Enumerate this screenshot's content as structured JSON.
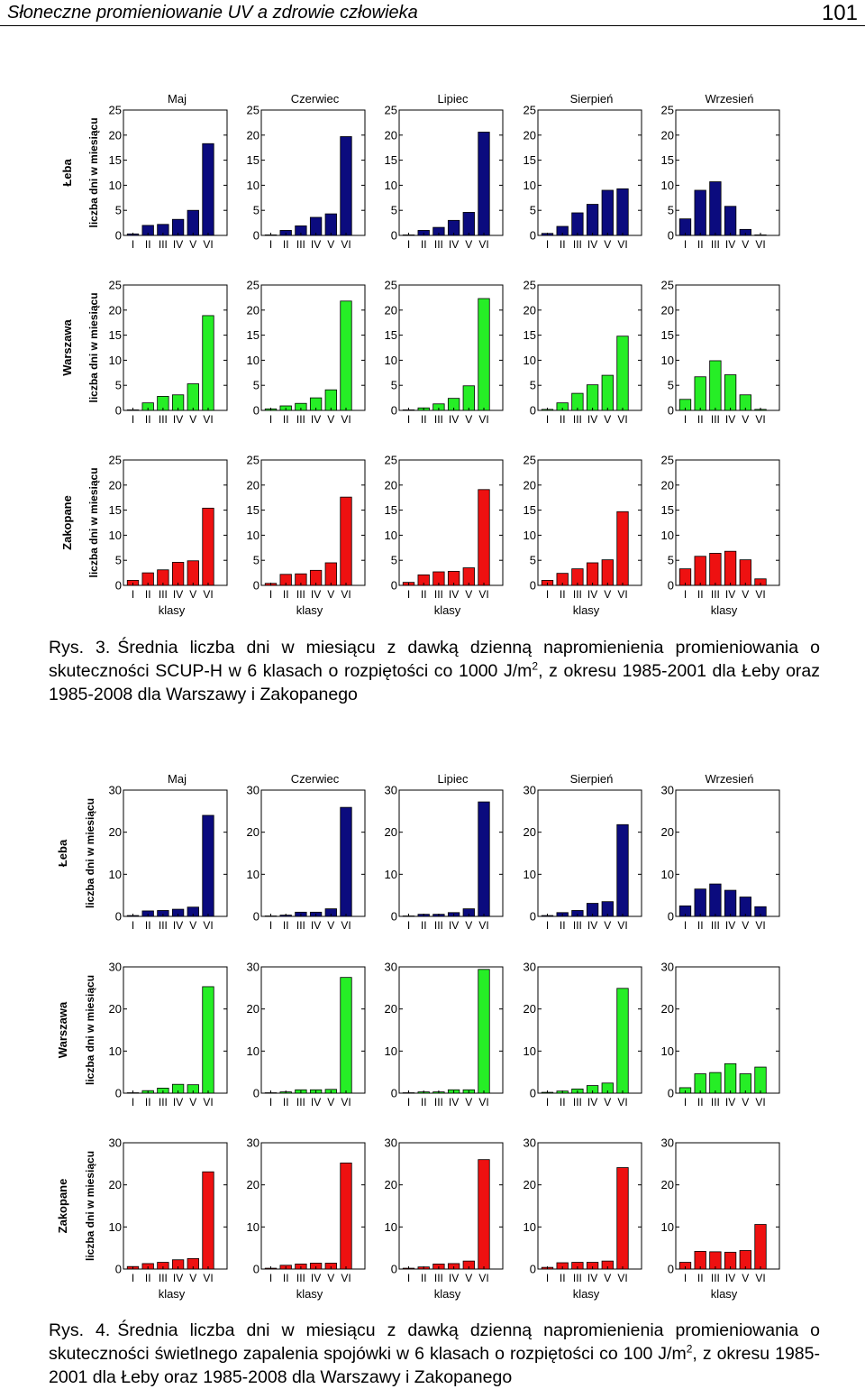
{
  "header": {
    "title": "Słoneczne promieniowanie UV a zdrowie człowieka",
    "page_number": "101"
  },
  "colors": {
    "Łeba": "#0b0b7e",
    "Warszawa": "#26ee26",
    "Zakopane": "#ee1111"
  },
  "chart_data": [
    {
      "type": "bar",
      "months": [
        "Maj",
        "Czerwiec",
        "Lipiec",
        "Sierpień",
        "Wrzesień"
      ],
      "cities": [
        "Łeba",
        "Warszawa",
        "Zakopane"
      ],
      "categories": [
        "I",
        "II",
        "III",
        "IV",
        "V",
        "VI"
      ],
      "xlabel": "klasy",
      "ylabel": "liczba dni w miesiącu",
      "ylim": [
        0,
        25
      ],
      "yticks": [
        "0",
        "5",
        "10",
        "15",
        "20",
        "25"
      ],
      "series": [
        {
          "city": "Łeba",
          "month": "Maj",
          "values": [
            0.3,
            2.0,
            2.2,
            3.2,
            5.0,
            18.3
          ]
        },
        {
          "city": "Łeba",
          "month": "Czerwiec",
          "values": [
            0.1,
            1.0,
            1.9,
            3.6,
            4.3,
            19.7
          ]
        },
        {
          "city": "Łeba",
          "month": "Lipiec",
          "values": [
            0.1,
            1.0,
            1.6,
            3.0,
            4.6,
            20.6
          ]
        },
        {
          "city": "Łeba",
          "month": "Sierpień",
          "values": [
            0.4,
            1.8,
            4.5,
            6.2,
            9.0,
            9.3
          ]
        },
        {
          "city": "Łeba",
          "month": "Wrzesień",
          "values": [
            3.3,
            9.0,
            10.7,
            5.8,
            1.2,
            0.1
          ]
        },
        {
          "city": "Warszawa",
          "month": "Maj",
          "values": [
            0.1,
            1.5,
            2.8,
            3.1,
            5.3,
            18.9
          ]
        },
        {
          "city": "Warszawa",
          "month": "Czerwiec",
          "values": [
            0.3,
            0.9,
            1.4,
            2.5,
            4.1,
            21.8
          ]
        },
        {
          "city": "Warszawa",
          "month": "Lipiec",
          "values": [
            0.1,
            0.5,
            1.3,
            2.4,
            4.9,
            22.3
          ]
        },
        {
          "city": "Warszawa",
          "month": "Sierpień",
          "values": [
            0.2,
            1.5,
            3.4,
            5.1,
            7.0,
            14.8
          ]
        },
        {
          "city": "Warszawa",
          "month": "Wrzesień",
          "values": [
            2.2,
            6.7,
            9.9,
            7.1,
            3.1,
            0.2
          ]
        },
        {
          "city": "Zakopane",
          "month": "Maj",
          "values": [
            1.0,
            2.5,
            3.1,
            4.6,
            4.9,
            15.4
          ]
        },
        {
          "city": "Zakopane",
          "month": "Czerwiec",
          "values": [
            0.4,
            2.2,
            2.3,
            3.0,
            4.5,
            17.6
          ]
        },
        {
          "city": "Zakopane",
          "month": "Lipiec",
          "values": [
            0.6,
            2.1,
            2.7,
            2.8,
            3.5,
            19.1
          ]
        },
        {
          "city": "Zakopane",
          "month": "Sierpień",
          "values": [
            1.0,
            2.4,
            3.3,
            4.5,
            5.1,
            14.7
          ]
        },
        {
          "city": "Zakopane",
          "month": "Wrzesień",
          "values": [
            3.3,
            5.8,
            6.4,
            6.8,
            5.1,
            1.3
          ]
        }
      ]
    },
    {
      "type": "bar",
      "months": [
        "Maj",
        "Czerwiec",
        "Lipiec",
        "Sierpień",
        "Wrzesień"
      ],
      "cities": [
        "Łeba",
        "Warszawa",
        "Zakopane"
      ],
      "categories": [
        "I",
        "II",
        "III",
        "IV",
        "V",
        "VI"
      ],
      "xlabel": "klasy",
      "ylabel": "liczba dni w miesiącu",
      "ylim": [
        0,
        30
      ],
      "yticks": [
        "0",
        "10",
        "20",
        "30"
      ],
      "series": [
        {
          "city": "Łeba",
          "month": "Maj",
          "values": [
            0.2,
            1.3,
            1.4,
            1.7,
            2.2,
            24.0
          ]
        },
        {
          "city": "Łeba",
          "month": "Czerwiec",
          "values": [
            0.1,
            0.3,
            1.0,
            1.0,
            1.8,
            25.9
          ]
        },
        {
          "city": "Łeba",
          "month": "Lipiec",
          "values": [
            0.1,
            0.5,
            0.5,
            0.9,
            1.8,
            27.2
          ]
        },
        {
          "city": "Łeba",
          "month": "Sierpień",
          "values": [
            0.2,
            0.9,
            1.4,
            3.1,
            3.5,
            21.8
          ]
        },
        {
          "city": "Łeba",
          "month": "Wrzesień",
          "values": [
            2.5,
            6.5,
            7.7,
            6.2,
            4.6,
            2.3
          ]
        },
        {
          "city": "Warszawa",
          "month": "Maj",
          "values": [
            0.1,
            0.6,
            1.2,
            2.1,
            2.0,
            25.3
          ]
        },
        {
          "city": "Warszawa",
          "month": "Czerwiec",
          "values": [
            0.1,
            0.3,
            0.8,
            0.8,
            0.9,
            27.5
          ]
        },
        {
          "city": "Warszawa",
          "month": "Lipiec",
          "values": [
            0.1,
            0.3,
            0.3,
            0.8,
            0.8,
            29.4
          ]
        },
        {
          "city": "Warszawa",
          "month": "Sierpień",
          "values": [
            0.2,
            0.5,
            1.0,
            1.8,
            2.4,
            24.9
          ]
        },
        {
          "city": "Warszawa",
          "month": "Wrzesień",
          "values": [
            1.3,
            4.6,
            4.9,
            7.0,
            4.6,
            6.2
          ]
        },
        {
          "city": "Zakopane",
          "month": "Maj",
          "values": [
            0.6,
            1.3,
            1.6,
            2.2,
            2.5,
            23.1
          ]
        },
        {
          "city": "Zakopane",
          "month": "Czerwiec",
          "values": [
            0.2,
            0.9,
            1.2,
            1.4,
            1.4,
            25.2
          ]
        },
        {
          "city": "Zakopane",
          "month": "Lipiec",
          "values": [
            0.2,
            0.5,
            1.2,
            1.3,
            1.9,
            26.0
          ]
        },
        {
          "city": "Zakopane",
          "month": "Sierpień",
          "values": [
            0.4,
            1.5,
            1.6,
            1.6,
            1.9,
            24.1
          ]
        },
        {
          "city": "Zakopane",
          "month": "Wrzesień",
          "values": [
            1.6,
            4.2,
            4.1,
            4.0,
            4.4,
            10.6
          ]
        }
      ]
    }
  ],
  "captions": [
    {
      "label": "Rys. 3.",
      "text_before": "Średnia liczba dni w miesiącu z dawką dzienną napromienienia promieniowania o skuteczności SCUP-H w 6 klasach o rozpiętości co 1000 J/m",
      "sup": "2",
      "text_after": ", z okresu 1985-2001 dla Łeby oraz 1985-2008 dla Warszawy i Zakopanego"
    },
    {
      "label": "Rys. 4.",
      "text_before": "Średnia liczba dni w miesiącu z dawką dzienną napromienienia promieniowania o skuteczności świetlnego zapalenia spojówki w 6 klasach o rozpiętości co 100 J/m",
      "sup": "2",
      "text_after": ", z okresu 1985-2001 dla Łeby oraz 1985-2008 dla Warszawy i Zakopanego"
    }
  ]
}
